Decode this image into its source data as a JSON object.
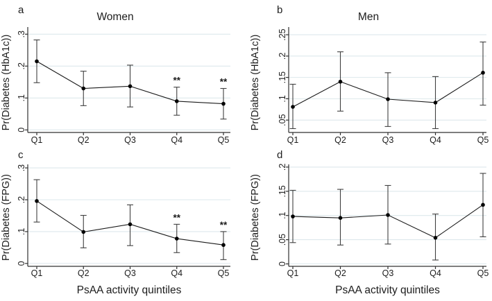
{
  "colors": {
    "background": "#ffffff",
    "gridline": "#dde8ec",
    "axis": "#303030",
    "data_line": "#1a1a1a",
    "marker": "#000000",
    "error_bar": "#3f3f3f",
    "text": "#1c1c1c"
  },
  "x_axis_title": "PsAA activity quintiles",
  "chart_data": [
    {
      "type": "line",
      "panel_letter": "a",
      "title": "Women",
      "xlabel": "",
      "ylabel": "Pr(Diabetes (HbA1c))",
      "categories": [
        "Q1",
        "Q2",
        "Q3",
        "Q4",
        "Q5"
      ],
      "values": [
        0.215,
        0.13,
        0.137,
        0.09,
        0.082
      ],
      "ci_low": [
        0.148,
        0.076,
        0.072,
        0.046,
        0.034
      ],
      "ci_high": [
        0.282,
        0.184,
        0.203,
        0.134,
        0.13
      ],
      "significance": [
        "",
        "",
        "",
        "**",
        "**"
      ],
      "ytick_values": [
        0,
        0.1,
        0.2,
        0.3
      ],
      "ytick_labels": [
        "0",
        ".1",
        ".2",
        ".3"
      ],
      "ylim": [
        -0.008,
        0.305
      ],
      "grid": true,
      "error_bars": true,
      "legend": "none"
    },
    {
      "type": "line",
      "panel_letter": "b",
      "title": "Men",
      "xlabel": "",
      "ylabel": "Pr(Diabetes (HbA1c))",
      "categories": [
        "Q1",
        "Q2",
        "Q3",
        "Q4",
        "Q5"
      ],
      "values": [
        0.081,
        0.14,
        0.099,
        0.091,
        0.161
      ],
      "ci_low": [
        0.03,
        0.071,
        0.035,
        0.03,
        0.085
      ],
      "ci_high": [
        0.134,
        0.21,
        0.161,
        0.152,
        0.233
      ],
      "significance": [
        "",
        "",
        "",
        "",
        ""
      ],
      "ytick_values": [
        0.05,
        0.1,
        0.15,
        0.2,
        0.25
      ],
      "ytick_labels": [
        ".05",
        ".1",
        ".15",
        ".2",
        ".25"
      ],
      "ylim": [
        0.021,
        0.255
      ],
      "grid": true,
      "error_bars": true,
      "legend": "none"
    },
    {
      "type": "line",
      "panel_letter": "c",
      "title": "",
      "xlabel": "PsAA activity quintiles",
      "ylabel": "Pr(Diabetes (FPG))",
      "categories": [
        "Q1",
        "Q2",
        "Q3",
        "Q4",
        "Q5"
      ],
      "values": [
        0.196,
        0.099,
        0.123,
        0.078,
        0.058
      ],
      "ci_low": [
        0.13,
        0.049,
        0.056,
        0.034,
        0.012
      ],
      "ci_high": [
        0.263,
        0.151,
        0.184,
        0.123,
        0.1
      ],
      "significance": [
        "",
        "",
        "",
        "**",
        "**"
      ],
      "ytick_values": [
        0,
        0.1,
        0.2,
        0.3
      ],
      "ytick_labels": [
        "0",
        ".1",
        ".2",
        ".3"
      ],
      "ylim": [
        -0.009,
        0.298
      ],
      "grid": true,
      "error_bars": true,
      "legend": "none"
    },
    {
      "type": "line",
      "panel_letter": "d",
      "title": "",
      "xlabel": "PsAA activity quintiles",
      "ylabel": "Pr(Diabetes (FPG))",
      "categories": [
        "Q1",
        "Q2",
        "Q3",
        "Q4",
        "Q5"
      ],
      "values": [
        0.098,
        0.095,
        0.101,
        0.054,
        0.122
      ],
      "ci_low": [
        0.044,
        0.039,
        0.041,
        0.008,
        0.056
      ],
      "ci_high": [
        0.152,
        0.154,
        0.162,
        0.103,
        0.187
      ],
      "significance": [
        "",
        "",
        "",
        "",
        ""
      ],
      "ytick_values": [
        0,
        0.05,
        0.1,
        0.15,
        0.2
      ],
      "ytick_labels": [
        "0",
        ".05",
        ".1",
        ".15",
        ".2"
      ],
      "ylim": [
        -0.005,
        0.197
      ],
      "grid": true,
      "error_bars": true,
      "legend": "none"
    }
  ]
}
